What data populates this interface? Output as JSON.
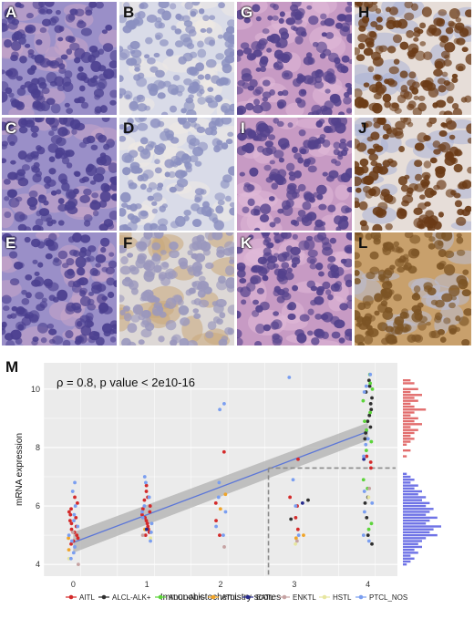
{
  "panel_labels": [
    "A",
    "B",
    "C",
    "D",
    "E",
    "F",
    "G",
    "H",
    "I",
    "J",
    "K",
    "L"
  ],
  "panel_m_label": "M",
  "stains": {
    "he": {
      "bg": "#9a8fc8",
      "cell": "#4b3f8f",
      "alt": "#c9a5c9"
    },
    "he_pink": {
      "bg": "#c79ac4",
      "cell": "#54418c",
      "alt": "#e0b9d8"
    },
    "ihc_neg": {
      "bg": "#d9dbe8",
      "cell": "#8b8fc0",
      "alt": "#efe9e4"
    },
    "ihc_weak": {
      "bg": "#ddd8d6",
      "cell": "#9a97bd",
      "alt": "#c9a77a"
    },
    "ihc_strong": {
      "bg": "#e6ddd8",
      "cell": "#6b3b17",
      "alt": "#a9b0d6"
    },
    "ihc_brown": {
      "bg": "#c8a06c",
      "cell": "#7c5425",
      "alt": "#b9bed6"
    }
  },
  "chart_data": {
    "type": "scatter",
    "title": "",
    "annotation": "ρ = 0.8, p value < 2e10-16",
    "xlabel": "Immunohistochemistry scores",
    "ylabel": "mRNA expression",
    "xlim": [
      -0.4,
      4.4
    ],
    "ylim": [
      3.6,
      10.9
    ],
    "x_ticks": [
      "0",
      "1",
      "2",
      "3",
      "4"
    ],
    "y_ticks": [
      "4",
      "6",
      "8",
      "10"
    ],
    "grid": true,
    "regression": {
      "x0": 0,
      "y0": 4.75,
      "x1": 4,
      "y1": 8.55
    },
    "threshold": {
      "x": 2.65,
      "y": 7.3
    },
    "legend_position": "bottom",
    "series": [
      {
        "name": "AITL",
        "color": "#d42a2a",
        "points": [
          [
            0,
            6.3
          ],
          [
            0,
            6.1
          ],
          [
            0,
            5.9
          ],
          [
            0,
            5.8
          ],
          [
            0,
            5.7
          ],
          [
            0,
            5.6
          ],
          [
            0,
            5.5
          ],
          [
            0,
            5.4
          ],
          [
            0,
            5.3
          ],
          [
            0,
            5.2
          ],
          [
            0,
            5.1
          ],
          [
            0,
            5.0
          ],
          [
            0,
            4.9
          ],
          [
            0,
            4.8
          ],
          [
            0,
            4.7
          ],
          [
            1,
            6.7
          ],
          [
            1,
            6.5
          ],
          [
            1,
            6.3
          ],
          [
            1,
            6.2
          ],
          [
            1,
            6.0
          ],
          [
            1,
            5.9
          ],
          [
            1,
            5.8
          ],
          [
            1,
            5.7
          ],
          [
            1,
            5.6
          ],
          [
            1,
            5.5
          ],
          [
            1,
            5.4
          ],
          [
            1,
            5.3
          ],
          [
            1,
            5.2
          ],
          [
            1,
            5.1
          ],
          [
            1,
            5.0
          ],
          [
            2,
            7.85
          ],
          [
            2,
            6.1
          ],
          [
            2,
            5.5
          ],
          [
            2,
            5.0
          ],
          [
            3,
            7.6
          ],
          [
            3,
            6.3
          ],
          [
            3,
            6.0
          ],
          [
            3,
            5.6
          ],
          [
            3,
            5.2
          ],
          [
            4,
            7.7
          ],
          [
            4,
            7.5
          ],
          [
            4,
            7.3
          ]
        ]
      },
      {
        "name": "ALCL-ALK+",
        "color": "#2e2e2e",
        "points": [
          [
            4,
            10.3
          ],
          [
            4,
            10.1
          ],
          [
            4,
            9.9
          ],
          [
            4,
            9.7
          ],
          [
            4,
            9.5
          ],
          [
            4,
            9.3
          ],
          [
            4,
            9.1
          ],
          [
            4,
            8.9
          ],
          [
            4,
            8.7
          ],
          [
            4,
            8.5
          ],
          [
            4,
            8.3
          ],
          [
            4,
            6.3
          ],
          [
            4,
            6.1
          ],
          [
            4,
            5.6
          ],
          [
            4,
            5.0
          ],
          [
            4,
            4.7
          ],
          [
            3.2,
            6.2
          ],
          [
            3,
            5.55
          ]
        ]
      },
      {
        "name": "ALCL-ALK-",
        "color": "#5cd43a",
        "points": [
          [
            4,
            10.5
          ],
          [
            4,
            10.2
          ],
          [
            4,
            10.0
          ],
          [
            4,
            9.6
          ],
          [
            4,
            9.2
          ],
          [
            4,
            8.9
          ],
          [
            4,
            8.6
          ],
          [
            4,
            8.2
          ],
          [
            4,
            7.9
          ],
          [
            4,
            6.9
          ],
          [
            4,
            6.6
          ],
          [
            4,
            5.4
          ],
          [
            4,
            5.2
          ]
        ]
      },
      {
        "name": "ATLL",
        "color": "#f0a428",
        "points": [
          [
            0,
            4.9
          ],
          [
            0,
            4.5
          ],
          [
            1,
            5.2
          ],
          [
            2,
            6.4
          ],
          [
            2,
            5.9
          ],
          [
            3,
            4.9
          ],
          [
            3.1,
            5.0
          ]
        ]
      },
      {
        "name": "EATL",
        "color": "#262a8c",
        "points": [
          [
            1,
            5.2
          ],
          [
            4,
            7.6
          ],
          [
            3.1,
            6.1
          ]
        ]
      },
      {
        "name": "ENKTL",
        "color": "#c6a3a3",
        "points": [
          [
            0,
            5.1
          ],
          [
            0,
            4.0
          ],
          [
            1,
            5.0
          ],
          [
            2,
            4.6
          ],
          [
            3,
            4.8
          ],
          [
            4,
            6.6
          ]
        ]
      },
      {
        "name": "HSTL",
        "color": "#e7e6a0",
        "points": [
          [
            0,
            4.2
          ],
          [
            1,
            4.9
          ],
          [
            3,
            4.7
          ],
          [
            4,
            6.3
          ]
        ]
      },
      {
        "name": "PTCL_NOS",
        "color": "#7a9ef0",
        "points": [
          [
            0,
            6.8
          ],
          [
            0,
            6.5
          ],
          [
            0,
            6.0
          ],
          [
            0,
            5.7
          ],
          [
            0,
            5.5
          ],
          [
            0,
            5.3
          ],
          [
            0,
            5.0
          ],
          [
            0,
            4.8
          ],
          [
            0,
            4.6
          ],
          [
            0,
            4.4
          ],
          [
            0,
            4.2
          ],
          [
            1,
            7.0
          ],
          [
            1,
            6.8
          ],
          [
            1,
            6.3
          ],
          [
            1,
            6.0
          ],
          [
            1,
            5.8
          ],
          [
            1,
            5.6
          ],
          [
            1,
            5.4
          ],
          [
            1,
            5.1
          ],
          [
            1,
            4.8
          ],
          [
            2,
            9.5
          ],
          [
            2,
            9.3
          ],
          [
            2,
            6.8
          ],
          [
            2,
            6.3
          ],
          [
            2,
            5.8
          ],
          [
            2,
            5.3
          ],
          [
            2,
            5.0
          ],
          [
            3,
            10.4
          ],
          [
            3,
            6.9
          ],
          [
            3,
            6.0
          ],
          [
            3,
            5.0
          ],
          [
            4,
            10.5
          ],
          [
            4,
            10.1
          ],
          [
            4,
            9.9
          ],
          [
            4,
            8.3
          ],
          [
            4,
            8.1
          ],
          [
            4,
            7.7
          ],
          [
            4,
            6.5
          ],
          [
            4,
            6.1
          ],
          [
            4,
            5.8
          ],
          [
            4,
            5.0
          ],
          [
            4,
            4.8
          ]
        ]
      }
    ],
    "marginal_histogram": {
      "orientation": "horizontal",
      "upper_color": "#e26d6d",
      "lower_color": "#6f73e6",
      "upper": [
        [
          10.3,
          2
        ],
        [
          10.2,
          3
        ],
        [
          10.0,
          4
        ],
        [
          9.9,
          2
        ],
        [
          9.8,
          5
        ],
        [
          9.7,
          3
        ],
        [
          9.6,
          4
        ],
        [
          9.5,
          2
        ],
        [
          9.4,
          3
        ],
        [
          9.3,
          6
        ],
        [
          9.2,
          3
        ],
        [
          9.1,
          2
        ],
        [
          9.0,
          4
        ],
        [
          8.9,
          3
        ],
        [
          8.8,
          5
        ],
        [
          8.7,
          2
        ],
        [
          8.6,
          4
        ],
        [
          8.5,
          3
        ],
        [
          8.4,
          2
        ],
        [
          8.3,
          3
        ],
        [
          8.2,
          2
        ],
        [
          8.1,
          1
        ],
        [
          7.9,
          2
        ],
        [
          7.7,
          1
        ]
      ],
      "lower": [
        [
          7.1,
          1
        ],
        [
          7.0,
          2
        ],
        [
          6.9,
          3
        ],
        [
          6.8,
          2
        ],
        [
          6.7,
          4
        ],
        [
          6.6,
          3
        ],
        [
          6.5,
          5
        ],
        [
          6.4,
          4
        ],
        [
          6.3,
          6
        ],
        [
          6.2,
          5
        ],
        [
          6.1,
          7
        ],
        [
          6.0,
          6
        ],
        [
          5.9,
          8
        ],
        [
          5.8,
          7
        ],
        [
          5.7,
          6
        ],
        [
          5.6,
          9
        ],
        [
          5.5,
          7
        ],
        [
          5.4,
          6
        ],
        [
          5.3,
          10
        ],
        [
          5.2,
          8
        ],
        [
          5.1,
          7
        ],
        [
          5.0,
          9
        ],
        [
          4.9,
          6
        ],
        [
          4.8,
          5
        ],
        [
          4.7,
          4
        ],
        [
          4.6,
          5
        ],
        [
          4.5,
          3
        ],
        [
          4.4,
          4
        ],
        [
          4.3,
          2
        ],
        [
          4.2,
          3
        ],
        [
          4.1,
          2
        ],
        [
          4.0,
          1
        ]
      ]
    }
  }
}
